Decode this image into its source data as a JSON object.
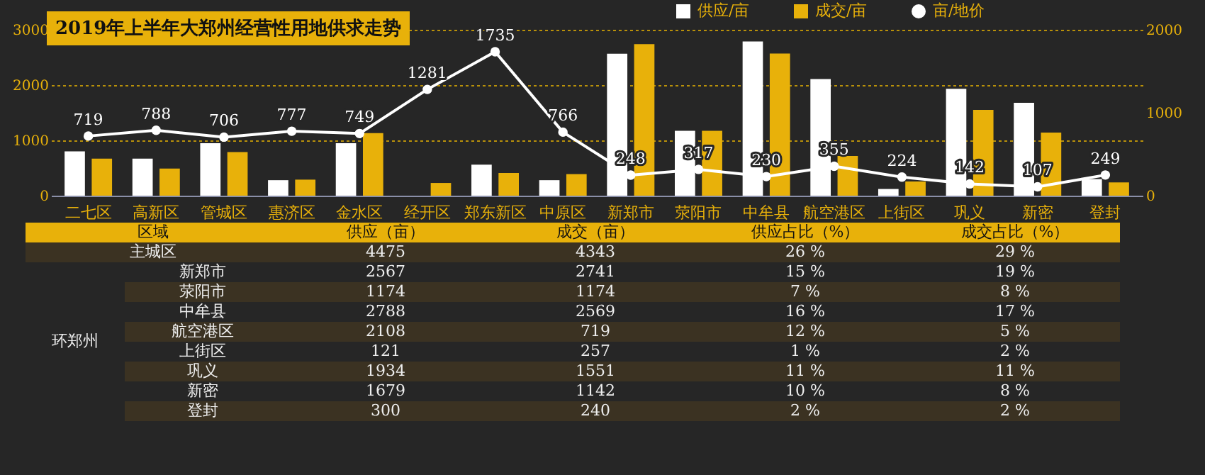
{
  "chart_data": [
    {
      "type": "bar",
      "title": "2019年上半年大郑州经营性用地供求走势",
      "categories": [
        "二七区",
        "高新区",
        "管城区",
        "惠济区",
        "金水区",
        "经开区",
        "郑东新区",
        "中原区",
        "新郑市",
        "荥阳市",
        "中牟县",
        "航空港区",
        "上街区",
        "巩义",
        "新密",
        "登封"
      ],
      "series": [
        {
          "name": "供应/亩",
          "type": "bar",
          "color": "#ffffff",
          "values": [
            800,
            670,
            950,
            280,
            950,
            0,
            560,
            280,
            2567,
            1174,
            2788,
            2108,
            121,
            1934,
            1679,
            300
          ]
        },
        {
          "name": "成交/亩",
          "type": "bar",
          "color": "#e8b10a",
          "values": [
            670,
            490,
            790,
            290,
            1130,
            230,
            410,
            390,
            2741,
            1174,
            2569,
            719,
            257,
            1551,
            1142,
            240
          ]
        },
        {
          "name": "亩/地价",
          "type": "line",
          "axis": "y2",
          "color": "#ffffff",
          "values": [
            719,
            788,
            706,
            777,
            749,
            1281,
            1735,
            766,
            248,
            317,
            230,
            355,
            224,
            142,
            107,
            249
          ],
          "value_labels": [
            "719",
            "788",
            "706",
            "777",
            "749",
            "1281",
            "1735",
            "766",
            "248",
            "317",
            "230",
            "355",
            "224",
            "142",
            "107",
            "249"
          ]
        }
      ],
      "ylim": [
        0,
        3000
      ],
      "yticks": [
        0,
        1000,
        2000,
        3000
      ],
      "y2lim": [
        0,
        2000
      ],
      "y2ticks": [
        0,
        1000,
        2000
      ],
      "grid": "y",
      "legend": "top right",
      "marker": "circle"
    },
    {
      "type": "other",
      "annotations": [
        "区域",
        "供应（亩）",
        "成交（亩）",
        "供应占比（%）",
        "成交占比（%）",
        "主城区",
        "4475",
        "4343",
        "26 %",
        "29 %",
        "环郑州",
        "新郑市",
        "2567",
        "2741",
        "15 %",
        "19 %",
        "荥阳市",
        "1174",
        "1174",
        "7 %",
        "8 %",
        "中牟县",
        "2788",
        "2569",
        "16 %",
        "17 %",
        "航空港区",
        "2108",
        "719",
        "12 %",
        "5 %",
        "上街区",
        "121",
        "257",
        "1 %",
        "2 %",
        "巩义",
        "1934",
        "1551",
        "11 %",
        "11 %",
        "新密",
        "1679",
        "1142",
        "10 %",
        "8 %",
        "登封",
        "300",
        "240",
        "2 %",
        "2 %"
      ]
    }
  ]
}
